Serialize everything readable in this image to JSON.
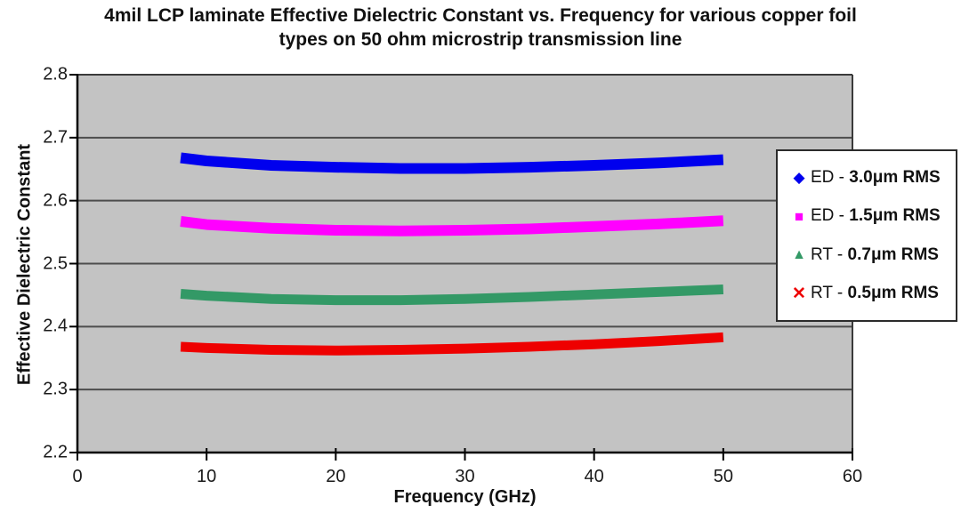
{
  "figure": {
    "title_lines": [
      "4mil LCP laminate Effective Dielectric Constant vs. Frequency for various copper foil",
      "types on 50 ohm microstrip transmission line"
    ]
  },
  "chart_data": {
    "type": "line",
    "title": "4mil LCP laminate Effective Dielectric Constant vs. Frequency for various copper foil types on 50 ohm microstrip transmission line",
    "xlabel": "Frequency (GHz)",
    "ylabel": "Effective Dielectric Constant",
    "xlim": [
      0,
      60
    ],
    "ylim": [
      2.2,
      2.8
    ],
    "x_ticks": [
      0,
      10,
      20,
      30,
      40,
      50,
      60
    ],
    "y_ticks": [
      2.2,
      2.3,
      2.4,
      2.5,
      2.6,
      2.7,
      2.8
    ],
    "grid": "horizontal-only",
    "legend_position": "right-overlay",
    "colors": {
      "plot_background": "#c3c3c3",
      "gridline": "#4d4d4d",
      "axis": "#000000"
    },
    "x": [
      8,
      10,
      15,
      20,
      25,
      30,
      35,
      40,
      45,
      50
    ],
    "series": [
      {
        "name": "ED - 3.0μm RMS",
        "label_prefix": "ED - ",
        "label_bold": "3.0μm RMS",
        "marker": "diamond",
        "marker_glyph": "◆",
        "color": "#0000ee",
        "stroke_width": 12,
        "values": [
          2.668,
          2.663,
          2.656,
          2.653,
          2.651,
          2.651,
          2.653,
          2.656,
          2.66,
          2.665
        ]
      },
      {
        "name": "ED - 1.5μm RMS",
        "label_prefix": "ED - ",
        "label_bold": "1.5μm  RMS",
        "marker": "square",
        "marker_glyph": "■",
        "color": "#ff00ff",
        "stroke_width": 12,
        "values": [
          2.567,
          2.562,
          2.556,
          2.553,
          2.552,
          2.553,
          2.555,
          2.559,
          2.563,
          2.568
        ]
      },
      {
        "name": "RT - 0.7μm RMS",
        "label_prefix": "RT - ",
        "label_bold": "0.7μm RMS",
        "marker": "triangle",
        "marker_glyph": "▲",
        "color": "#339966",
        "stroke_width": 11,
        "values": [
          2.452,
          2.449,
          2.444,
          2.442,
          2.442,
          2.444,
          2.447,
          2.451,
          2.455,
          2.459
        ]
      },
      {
        "name": "RT - 0.5μm RMS",
        "label_prefix": "RT - ",
        "label_bold": "0.5μm RMS",
        "marker": "x",
        "marker_glyph": "✕",
        "color": "#ee0000",
        "stroke_width": 11,
        "values": [
          2.368,
          2.366,
          2.363,
          2.362,
          2.363,
          2.365,
          2.368,
          2.372,
          2.377,
          2.383
        ]
      }
    ]
  }
}
